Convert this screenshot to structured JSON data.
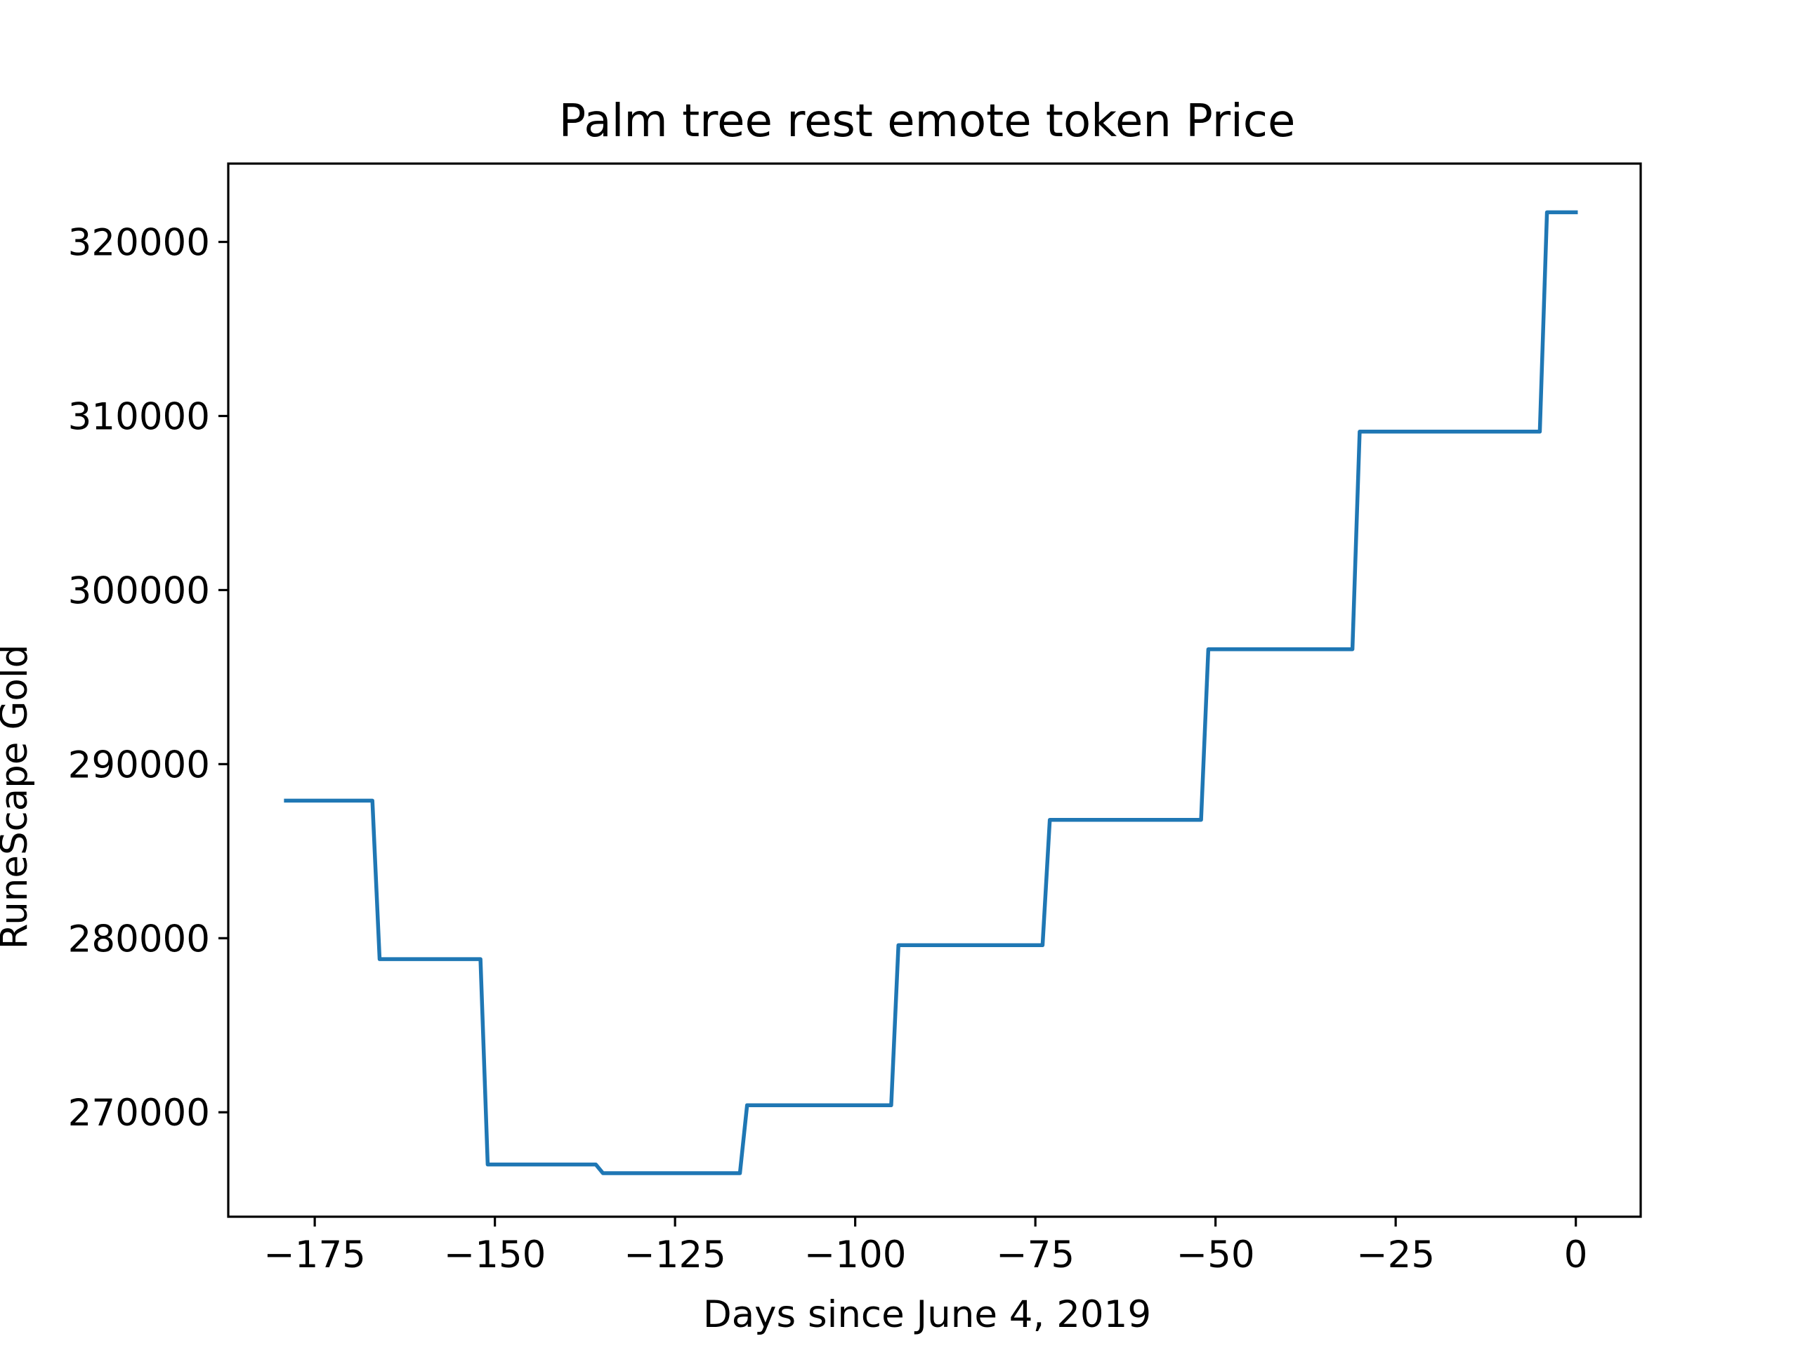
{
  "chart_data": {
    "type": "line",
    "title": "Palm tree rest emote token Price",
    "xlabel": "Days since June 4, 2019",
    "ylabel": "RuneScape Gold",
    "xlim": [
      -187,
      9
    ],
    "ylim": [
      264000,
      324500
    ],
    "x_ticks": [
      -175,
      -150,
      -125,
      -100,
      -75,
      -50,
      -25,
      0
    ],
    "x_tick_labels": [
      "−175",
      "−150",
      "−125",
      "−100",
      "−75",
      "−50",
      "−25",
      "0"
    ],
    "y_ticks": [
      270000,
      280000,
      290000,
      300000,
      310000,
      320000
    ],
    "y_tick_labels": [
      "270000",
      "280000",
      "290000",
      "300000",
      "310000",
      "320000"
    ],
    "grid": false,
    "series": [
      {
        "color": "#1f77b4",
        "points": [
          [
            -179,
            287900
          ],
          [
            -167,
            287900
          ],
          [
            -166,
            278800
          ],
          [
            -152,
            278800
          ],
          [
            -151,
            267000
          ],
          [
            -136,
            267000
          ],
          [
            -135,
            266500
          ],
          [
            -116,
            266500
          ],
          [
            -115,
            270400
          ],
          [
            -95,
            270400
          ],
          [
            -94,
            279600
          ],
          [
            -74,
            279600
          ],
          [
            -73,
            286800
          ],
          [
            -52,
            286800
          ],
          [
            -51,
            296600
          ],
          [
            -31,
            296600
          ],
          [
            -30,
            309100
          ],
          [
            -5,
            309100
          ],
          [
            -4,
            321700
          ],
          [
            0,
            321700
          ]
        ]
      }
    ]
  }
}
